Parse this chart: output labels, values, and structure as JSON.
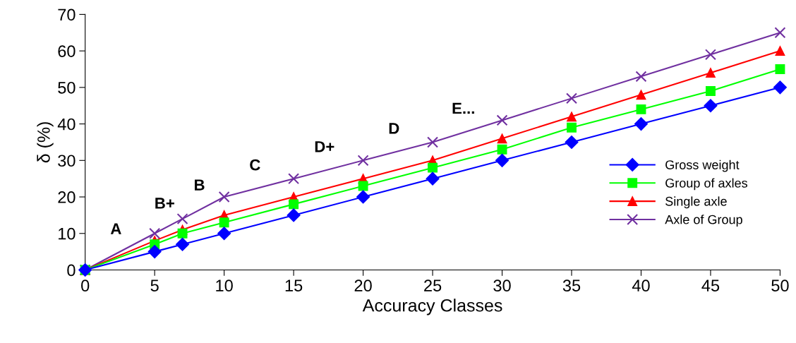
{
  "chart_data": {
    "type": "line",
    "xlabel": "Accuracy Classes",
    "ylabel": "δ (%)",
    "x": [
      0,
      5,
      7,
      10,
      15,
      20,
      25,
      30,
      35,
      40,
      45,
      50
    ],
    "series": [
      {
        "name": "Gross weight",
        "color": "#0000ff",
        "marker": "diamond",
        "values": [
          0,
          5,
          7,
          10,
          15,
          20,
          25,
          30,
          35,
          40,
          45,
          50
        ]
      },
      {
        "name": "Group of axles",
        "color": "#00ff00",
        "marker": "square",
        "values": [
          0,
          7,
          10,
          13,
          18,
          23,
          28,
          33,
          39,
          44,
          49,
          55
        ]
      },
      {
        "name": "Single axle",
        "color": "#ff0000",
        "marker": "triangle",
        "values": [
          0,
          8,
          11,
          15,
          20,
          25,
          30,
          36,
          42,
          48,
          54,
          60
        ]
      },
      {
        "name": "Axle of Group",
        "color": "#7030a0",
        "marker": "cross",
        "values": [
          0,
          10,
          14,
          20,
          25,
          30,
          35,
          41,
          47,
          53,
          59,
          65
        ]
      }
    ],
    "xlim": [
      0,
      50
    ],
    "xticks": [
      0,
      5,
      10,
      15,
      20,
      25,
      30,
      35,
      40,
      45,
      50
    ],
    "ylim": [
      0,
      70
    ],
    "yticks": [
      0,
      10,
      20,
      30,
      40,
      50,
      60,
      70
    ],
    "grid": false,
    "legend": "right",
    "line_style": "solid",
    "annotations": [
      "A",
      "B+",
      "B",
      "C",
      "D+",
      "D",
      "E..."
    ]
  }
}
